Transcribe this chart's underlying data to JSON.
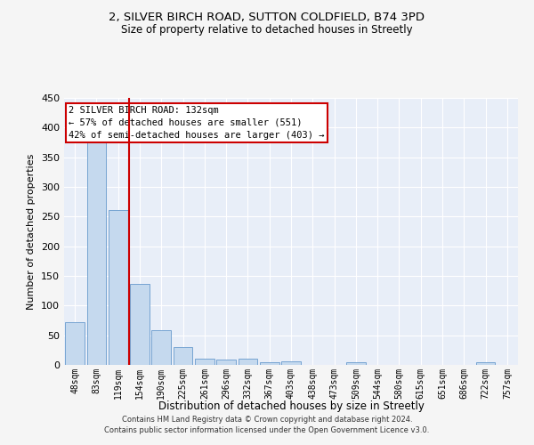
{
  "title1": "2, SILVER BIRCH ROAD, SUTTON COLDFIELD, B74 3PD",
  "title2": "Size of property relative to detached houses in Streetly",
  "xlabel": "Distribution of detached houses by size in Streetly",
  "ylabel": "Number of detached properties",
  "categories": [
    "48sqm",
    "83sqm",
    "119sqm",
    "154sqm",
    "190sqm",
    "225sqm",
    "261sqm",
    "296sqm",
    "332sqm",
    "367sqm",
    "403sqm",
    "438sqm",
    "473sqm",
    "509sqm",
    "544sqm",
    "580sqm",
    "615sqm",
    "651sqm",
    "686sqm",
    "722sqm",
    "757sqm"
  ],
  "values": [
    72,
    378,
    261,
    136,
    59,
    30,
    10,
    9,
    10,
    5,
    6,
    0,
    0,
    4,
    0,
    0,
    0,
    0,
    0,
    4,
    0
  ],
  "bar_color": "#c5d9ee",
  "bar_edge_color": "#6699cc",
  "red_line_x": 2.5,
  "annotation_lines": [
    "2 SILVER BIRCH ROAD: 132sqm",
    "← 57% of detached houses are smaller (551)",
    "42% of semi-detached houses are larger (403) →"
  ],
  "annotation_box_color": "#ffffff",
  "annotation_box_edge_color": "#cc0000",
  "red_line_color": "#cc0000",
  "ylim": [
    0,
    450
  ],
  "yticks": [
    0,
    50,
    100,
    150,
    200,
    250,
    300,
    350,
    400,
    450
  ],
  "background_color": "#e8eef8",
  "grid_color": "#ffffff",
  "fig_bg_color": "#f5f5f5",
  "footer1": "Contains HM Land Registry data © Crown copyright and database right 2024.",
  "footer2": "Contains public sector information licensed under the Open Government Licence v3.0."
}
